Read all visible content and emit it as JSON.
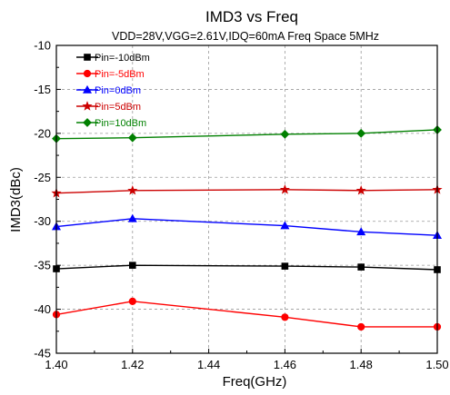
{
  "chart_data": {
    "type": "line",
    "title": "IMD3 vs Freq",
    "subtitle": "VDD=28V,VGG=2.61V,IDQ=60mA Freq Space 5MHz",
    "xlabel": "Freq(GHz)",
    "ylabel": "IMD3(dBc)",
    "xlim": [
      1.4,
      1.5
    ],
    "ylim": [
      -45,
      -10
    ],
    "xticks": [
      1.4,
      1.42,
      1.44,
      1.46,
      1.48,
      1.5
    ],
    "xtick_labels": [
      "1.40",
      "1.42",
      "1.44",
      "1.46",
      "1.48",
      "1.50"
    ],
    "yticks": [
      -45,
      -40,
      -35,
      -30,
      -25,
      -20,
      -15,
      -10
    ],
    "ytick_labels": [
      "-45",
      "-40",
      "-35",
      "-30",
      "-25",
      "-20",
      "-15",
      "-10"
    ],
    "grid": true,
    "legend_position": "top-left",
    "x": [
      1.4,
      1.42,
      1.46,
      1.48,
      1.5
    ],
    "series": [
      {
        "name": "Pin=-10dBm",
        "color": "#000000",
        "marker": "square",
        "values": [
          -35.4,
          -35.0,
          -35.1,
          -35.2,
          -35.5
        ]
      },
      {
        "name": "Pin=-5dBm",
        "color": "#ff0000",
        "marker": "circle",
        "values": [
          -40.6,
          -39.1,
          -40.9,
          -42.0,
          -42.0
        ]
      },
      {
        "name": "Pin=0dBm",
        "color": "#0000ff",
        "marker": "triangle",
        "values": [
          -30.6,
          -29.7,
          -30.5,
          -31.2,
          -31.6
        ]
      },
      {
        "name": "Pin=5dBm",
        "color": "#cc0000",
        "marker": "star",
        "values": [
          -26.8,
          -26.5,
          -26.4,
          -26.5,
          -26.4
        ]
      },
      {
        "name": "Pin=10dBm",
        "color": "#008000",
        "marker": "diamond",
        "values": [
          -20.6,
          -20.5,
          -20.1,
          -20.0,
          -19.6
        ]
      }
    ]
  }
}
